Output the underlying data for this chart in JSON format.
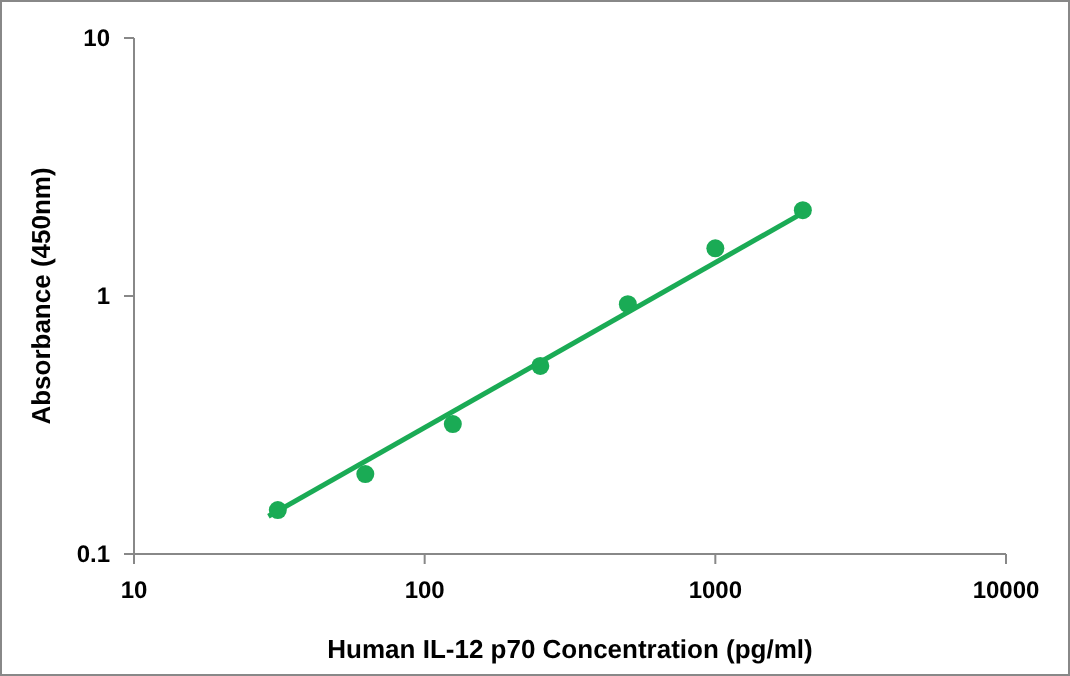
{
  "chart_data": {
    "type": "scatter",
    "xlabel": "Human IL-12 p70 Concentration (pg/ml)",
    "ylabel": "Absorbance (450nm)",
    "log": "xy",
    "xlim": [
      10,
      10000
    ],
    "xticks": [
      10,
      100,
      1000,
      10000
    ],
    "ylim": [
      0.1,
      10
    ],
    "yticks": [
      0.1,
      1,
      10
    ],
    "grid": false,
    "series": [
      {
        "color": "#1aab55",
        "marker": "circle",
        "x": [
          31.25,
          62.5,
          125,
          250,
          500,
          1000,
          2000
        ],
        "values": [
          0.148,
          0.204,
          0.319,
          0.536,
          0.93,
          1.53,
          2.15
        ]
      },
      {
        "type": "line",
        "color": "#1aab55",
        "x": [
          29,
          2000
        ],
        "values": [
          0.14,
          2.1
        ]
      }
    ]
  }
}
